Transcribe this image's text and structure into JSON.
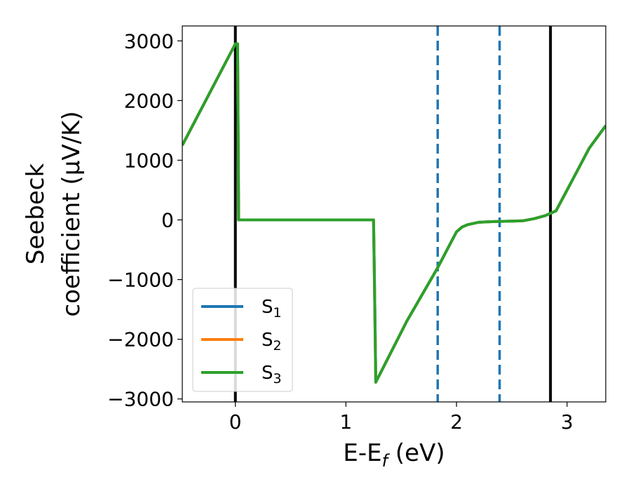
{
  "chart_data": {
    "type": "line",
    "xlabel": "E-E",
    "xlabel_sub": "f",
    "xlabel_unit": " (eV)",
    "ylabel_line1": "Seebeck",
    "ylabel_line2": "coefficient  (μV/K)",
    "xlim": [
      -0.48,
      3.35
    ],
    "ylim": [
      -3050,
      3250
    ],
    "xticks": [
      0,
      1,
      2,
      3
    ],
    "xtick_labels": [
      "0",
      "1",
      "2",
      "3"
    ],
    "yticks": [
      -3000,
      -2000,
      -1000,
      0,
      1000,
      2000,
      3000
    ],
    "ytick_labels": [
      "−3000",
      "−2000",
      "−1000",
      "0",
      "1000",
      "2000",
      "3000"
    ],
    "grid": false,
    "legend_position": "lower-left",
    "vlines": [
      {
        "x": 0.0,
        "style": "solid",
        "color": "#000000"
      },
      {
        "x": 2.85,
        "style": "solid",
        "color": "#000000"
      },
      {
        "x": 1.83,
        "style": "dashed",
        "color": "#1f77b4"
      },
      {
        "x": 2.39,
        "style": "dashed",
        "color": "#1f77b4"
      }
    ],
    "series": [
      {
        "name": "S",
        "sub": "1",
        "color": "#1f77b4",
        "x": [
          -0.48,
          0.0,
          0.02,
          0.03,
          1.25,
          1.26,
          1.27,
          1.55,
          1.83,
          2.0,
          2.05,
          2.1,
          2.2,
          2.3,
          2.4,
          2.5,
          2.6,
          2.7,
          2.8,
          2.9,
          3.0,
          3.1,
          3.2,
          3.35
        ],
        "y": [
          1250,
          2950,
          2950,
          0,
          0,
          -1300,
          -2720,
          -1700,
          -800,
          -200,
          -120,
          -80,
          -40,
          -30,
          -25,
          -20,
          -15,
          20,
          70,
          150,
          500,
          850,
          1200,
          1580
        ]
      },
      {
        "name": "S",
        "sub": "2",
        "color": "#ff7f0e",
        "x": [
          -0.48,
          0.0,
          0.02,
          0.03,
          1.25,
          1.26,
          1.27,
          1.55,
          1.83,
          2.0,
          2.05,
          2.1,
          2.2,
          2.3,
          2.4,
          2.5,
          2.6,
          2.7,
          2.8,
          2.9,
          3.0,
          3.1,
          3.2,
          3.35
        ],
        "y": [
          1250,
          2950,
          2950,
          0,
          0,
          -1300,
          -2720,
          -1700,
          -800,
          -200,
          -120,
          -80,
          -40,
          -30,
          -25,
          -20,
          -15,
          20,
          70,
          150,
          500,
          850,
          1200,
          1580
        ]
      },
      {
        "name": "S",
        "sub": "3",
        "color": "#2ca02c",
        "x": [
          -0.48,
          0.0,
          0.02,
          0.03,
          1.25,
          1.26,
          1.27,
          1.55,
          1.83,
          2.0,
          2.05,
          2.1,
          2.2,
          2.3,
          2.4,
          2.5,
          2.6,
          2.7,
          2.8,
          2.9,
          3.0,
          3.1,
          3.2,
          3.35
        ],
        "y": [
          1250,
          2950,
          2950,
          0,
          0,
          -1300,
          -2720,
          -1700,
          -800,
          -200,
          -120,
          -80,
          -40,
          -30,
          -25,
          -20,
          -15,
          20,
          70,
          150,
          500,
          850,
          1200,
          1580
        ]
      }
    ]
  }
}
